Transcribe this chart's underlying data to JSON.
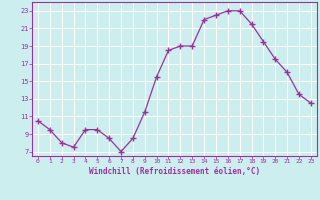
{
  "x": [
    0,
    1,
    2,
    3,
    4,
    5,
    6,
    7,
    8,
    9,
    10,
    11,
    12,
    13,
    14,
    15,
    16,
    17,
    18,
    19,
    20,
    21,
    22,
    23
  ],
  "y": [
    10.5,
    9.5,
    8.0,
    7.5,
    9.5,
    9.5,
    8.5,
    7.0,
    8.5,
    11.5,
    15.5,
    18.5,
    19.0,
    19.0,
    22.0,
    22.5,
    23.0,
    23.0,
    21.5,
    19.5,
    17.5,
    16.0,
    13.5,
    12.5
  ],
  "line_color": "#993399",
  "marker": "+",
  "bg_color": "#cceeee",
  "grid_color": "#aaddcc",
  "text_color": "#993399",
  "xlabel": "Windchill (Refroidissement éolien,°C)",
  "xlim": [
    -0.5,
    23.5
  ],
  "ylim": [
    6.5,
    24
  ],
  "yticks": [
    7,
    9,
    11,
    13,
    15,
    17,
    19,
    21,
    23
  ],
  "xticks": [
    0,
    1,
    2,
    3,
    4,
    5,
    6,
    7,
    8,
    9,
    10,
    11,
    12,
    13,
    14,
    15,
    16,
    17,
    18,
    19,
    20,
    21,
    22,
    23
  ]
}
